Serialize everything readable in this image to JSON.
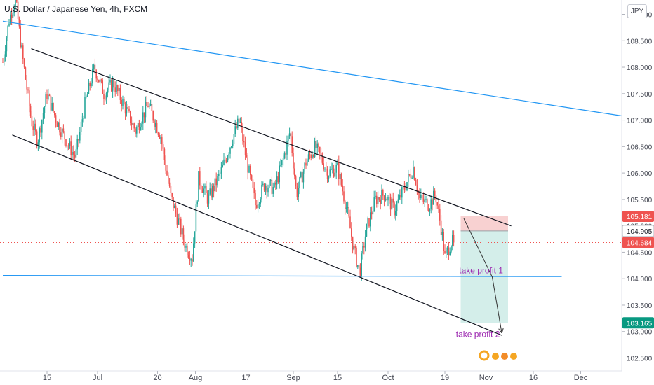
{
  "header": {
    "title": "U.S. Dollar / Japanese Yen, 4h, FXCM",
    "currency": "JPY"
  },
  "colors": {
    "bull": "#26a69a",
    "bear": "#ef5350",
    "trendline": "#2196f3",
    "channel": "#131722",
    "annotation": "#9c27b0",
    "stop_zone": "#f7c9c9",
    "target_zone": "#cdebe6"
  },
  "chart_data": {
    "type": "candlestick",
    "symbol": "USDJPY",
    "timeframe": "4h",
    "ylim": [
      102.35,
      109.35
    ],
    "y_ticks": [
      "109.000",
      "108.500",
      "108.000",
      "107.500",
      "107.000",
      "106.500",
      "106.000",
      "105.500",
      "105.000",
      "104.500",
      "104.000",
      "103.500",
      "103.000",
      "102.500"
    ],
    "x_ticks": [
      {
        "label": "15",
        "day": 14
      },
      {
        "label": "Jul",
        "day": 30
      },
      {
        "label": "20",
        "day": 49
      },
      {
        "label": "Aug",
        "day": 61
      },
      {
        "label": "17",
        "day": 77
      },
      {
        "label": "Sep",
        "day": 92
      },
      {
        "label": "15",
        "day": 106
      },
      {
        "label": "Oct",
        "day": 122
      },
      {
        "label": "19",
        "day": 140
      },
      {
        "label": "Nov",
        "day": 153
      },
      {
        "label": "16",
        "day": 168
      },
      {
        "label": "Dec",
        "day": 183
      }
    ],
    "price_path": [
      {
        "day": 0,
        "price": 108.1
      },
      {
        "day": 2,
        "price": 108.9
      },
      {
        "day": 4,
        "price": 109.3
      },
      {
        "day": 6,
        "price": 108.3
      },
      {
        "day": 9,
        "price": 107.0
      },
      {
        "day": 11,
        "price": 106.6
      },
      {
        "day": 14,
        "price": 107.5
      },
      {
        "day": 17,
        "price": 107.0
      },
      {
        "day": 21,
        "price": 106.5
      },
      {
        "day": 23,
        "price": 106.3
      },
      {
        "day": 26,
        "price": 107.3
      },
      {
        "day": 29,
        "price": 108.0
      },
      {
        "day": 32,
        "price": 107.5
      },
      {
        "day": 35,
        "price": 107.7
      },
      {
        "day": 39,
        "price": 107.2
      },
      {
        "day": 42,
        "price": 106.8
      },
      {
        "day": 46,
        "price": 107.3
      },
      {
        "day": 50,
        "price": 106.7
      },
      {
        "day": 53,
        "price": 105.6
      },
      {
        "day": 56,
        "price": 105.0
      },
      {
        "day": 58,
        "price": 104.6
      },
      {
        "day": 60,
        "price": 104.4
      },
      {
        "day": 62,
        "price": 105.9
      },
      {
        "day": 65,
        "price": 105.5
      },
      {
        "day": 69,
        "price": 106.0
      },
      {
        "day": 73,
        "price": 106.7
      },
      {
        "day": 75,
        "price": 107.0
      },
      {
        "day": 77,
        "price": 106.3
      },
      {
        "day": 80,
        "price": 105.4
      },
      {
        "day": 83,
        "price": 105.8
      },
      {
        "day": 86,
        "price": 105.7
      },
      {
        "day": 89,
        "price": 106.3
      },
      {
        "day": 91,
        "price": 106.8
      },
      {
        "day": 93,
        "price": 105.6
      },
      {
        "day": 96,
        "price": 106.2
      },
      {
        "day": 99,
        "price": 106.5
      },
      {
        "day": 103,
        "price": 106.0
      },
      {
        "day": 106,
        "price": 106.1
      },
      {
        "day": 109,
        "price": 105.3
      },
      {
        "day": 111,
        "price": 104.6
      },
      {
        "day": 113,
        "price": 104.1
      },
      {
        "day": 115,
        "price": 104.9
      },
      {
        "day": 118,
        "price": 105.5
      },
      {
        "day": 121,
        "price": 105.6
      },
      {
        "day": 124,
        "price": 105.3
      },
      {
        "day": 127,
        "price": 105.7
      },
      {
        "day": 130,
        "price": 106.1
      },
      {
        "day": 132,
        "price": 105.5
      },
      {
        "day": 135,
        "price": 105.4
      },
      {
        "day": 137,
        "price": 105.6
      },
      {
        "day": 139,
        "price": 104.9
      },
      {
        "day": 140,
        "price": 104.4
      },
      {
        "day": 142,
        "price": 104.7
      },
      {
        "day": 143,
        "price": 104.68
      }
    ],
    "price_labels": [
      {
        "value": 105.181,
        "text": "105.181",
        "color": "#ef5350",
        "text_color": "#ffffff"
      },
      {
        "value": 104.905,
        "text": "104.905",
        "color": "#ffffff",
        "text_color": "#131722"
      },
      {
        "value": 104.684,
        "text": "104.684",
        "color": "#ef5350",
        "text_color": "#ffffff"
      },
      {
        "value": 103.165,
        "text": "103.165",
        "color": "#089981",
        "text_color": "#ffffff"
      }
    ],
    "current_price": 104.684,
    "drawings": {
      "trendline": {
        "from": {
          "day": 0,
          "price": 108.87
        },
        "to": {
          "day": 196,
          "price": 107.08
        }
      },
      "channel_top": {
        "from": {
          "day": 9,
          "price": 108.35
        },
        "to": {
          "day": 161,
          "price": 105.0
        }
      },
      "channel_bottom": {
        "from": {
          "day": 3,
          "price": 106.72
        },
        "to": {
          "day": 158,
          "price": 102.93
        }
      },
      "support": {
        "from": {
          "day": 0,
          "price": 104.06
        },
        "to": {
          "day": 177,
          "price": 104.04
        }
      },
      "short_position": {
        "day_start": 145,
        "day_end": 160,
        "entry": 104.905,
        "stop": 105.181,
        "target": 103.165
      },
      "arrow_path": [
        {
          "day": 146,
          "price": 105.14
        },
        {
          "day": 155,
          "price": 104.03
        },
        {
          "day": 158,
          "price": 102.98
        }
      ],
      "annotations": [
        {
          "text": "take profit 1",
          "day": 144.5,
          "price": 104.1
        },
        {
          "text": "take profit 2",
          "day": 143.5,
          "price": 102.9
        }
      ]
    }
  }
}
